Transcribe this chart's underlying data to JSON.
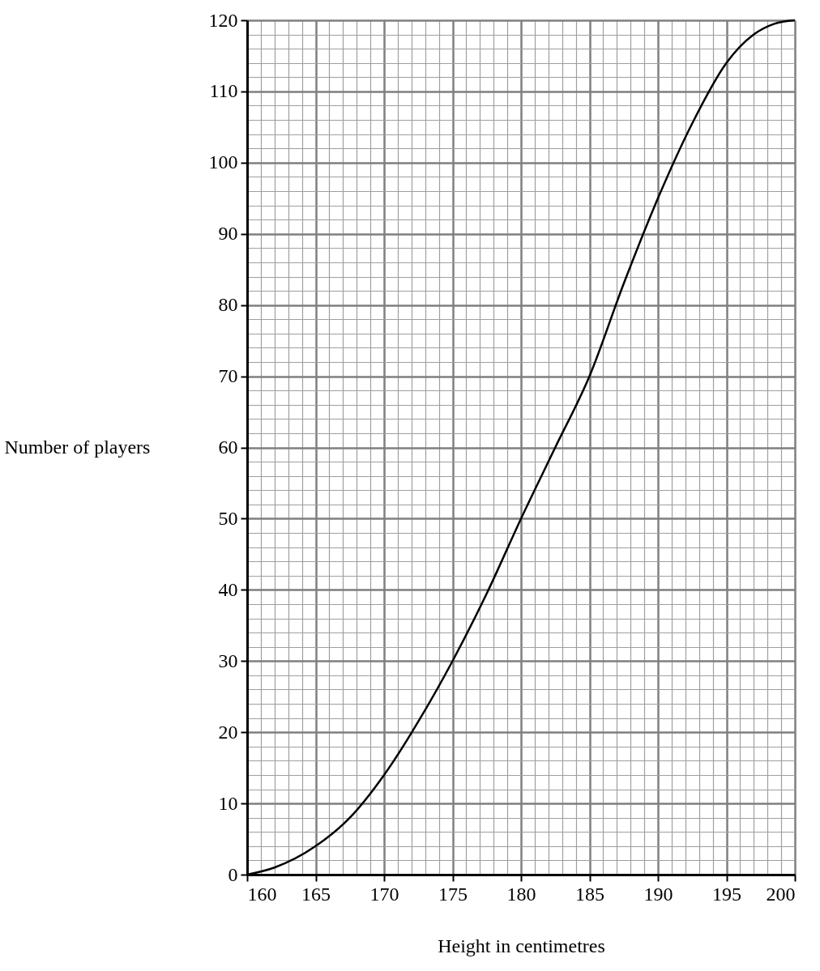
{
  "chart_data": {
    "type": "line",
    "xlabel": "Height in centimetres",
    "ylabel": "Number of players",
    "series": [
      {
        "color": "#000000",
        "x": [
          160,
          162,
          165,
          167.5,
          170,
          172.5,
          175,
          177.5,
          180,
          182.5,
          185,
          187.5,
          190,
          192.5,
          195,
          197,
          198.5,
          200
        ],
        "values": [
          0,
          1,
          4,
          8,
          14,
          21.5,
          30,
          39.5,
          50,
          60,
          70,
          83,
          95,
          105.5,
          114,
          118,
          119.5,
          120
        ]
      }
    ],
    "xlim": [
      160,
      200
    ],
    "ylim": [
      0,
      120
    ],
    "xticks": [
      160,
      {
        "value": 161,
        "label": null
      },
      {
        "value": 162,
        "label": null
      },
      {
        "value": 163,
        "label": null
      },
      {
        "value": 164,
        "label": null
      },
      165,
      {
        "value": 166,
        "label": null
      },
      {
        "value": 167,
        "label": null
      },
      {
        "value": 168,
        "label": null
      },
      {
        "value": 169,
        "label": null
      },
      170,
      {
        "value": 171,
        "label": null
      },
      {
        "value": 172,
        "label": null
      },
      {
        "value": 173,
        "label": null
      },
      {
        "value": 174,
        "label": null
      },
      175,
      {
        "value": 176,
        "label": null
      },
      {
        "value": 177,
        "label": null
      },
      {
        "value": 178,
        "label": null
      },
      {
        "value": 179,
        "label": null
      },
      180,
      {
        "value": 181,
        "label": null
      },
      {
        "value": 182,
        "label": null
      },
      {
        "value": 183,
        "label": null
      },
      {
        "value": 184,
        "label": null
      },
      185,
      {
        "value": 186,
        "label": null
      },
      {
        "value": 187,
        "label": null
      },
      {
        "value": 188,
        "label": null
      },
      {
        "value": 189,
        "label": null
      },
      190,
      {
        "value": 191,
        "label": null
      },
      {
        "value": 192,
        "label": null
      },
      {
        "value": 193,
        "label": null
      },
      {
        "value": 194,
        "label": null
      },
      195,
      {
        "value": 196,
        "label": null
      },
      {
        "value": 197,
        "label": null
      },
      {
        "value": 198,
        "label": null
      },
      {
        "value": 199,
        "label": null
      },
      200
    ],
    "yticks": [
      0,
      {
        "value": 2,
        "label": null
      },
      {
        "value": 4,
        "label": null
      },
      {
        "value": 6,
        "label": null
      },
      {
        "value": 8,
        "label": null
      },
      10,
      {
        "value": 12,
        "label": null
      },
      {
        "value": 14,
        "label": null
      },
      {
        "value": 16,
        "label": null
      },
      {
        "value": 18,
        "label": null
      },
      20,
      {
        "value": 22,
        "label": null
      },
      {
        "value": 24,
        "label": null
      },
      {
        "value": 26,
        "label": null
      },
      {
        "value": 28,
        "label": null
      },
      30,
      {
        "value": 32,
        "label": null
      },
      {
        "value": 34,
        "label": null
      },
      {
        "value": 36,
        "label": null
      },
      {
        "value": 38,
        "label": null
      },
      40,
      {
        "value": 42,
        "label": null
      },
      {
        "value": 44,
        "label": null
      },
      {
        "value": 46,
        "label": null
      },
      {
        "value": 48,
        "label": null
      },
      50,
      {
        "value": 52,
        "label": null
      },
      {
        "value": 54,
        "label": null
      },
      {
        "value": 56,
        "label": null
      },
      {
        "value": 58,
        "label": null
      },
      60,
      {
        "value": 62,
        "label": null
      },
      {
        "value": 64,
        "label": null
      },
      {
        "value": 66,
        "label": null
      },
      {
        "value": 68,
        "label": null
      },
      70,
      {
        "value": 72,
        "label": null
      },
      {
        "value": 74,
        "label": null
      },
      {
        "value": 76,
        "label": null
      },
      {
        "value": 78,
        "label": null
      },
      80,
      {
        "value": 82,
        "label": null
      },
      {
        "value": 84,
        "label": null
      },
      {
        "value": 86,
        "label": null
      },
      {
        "value": 88,
        "label": null
      },
      90,
      {
        "value": 92,
        "label": null
      },
      {
        "value": 94,
        "label": null
      },
      {
        "value": 96,
        "label": null
      },
      {
        "value": 98,
        "label": null
      },
      100,
      {
        "value": 102,
        "label": null
      },
      {
        "value": 104,
        "label": null
      },
      {
        "value": 106,
        "label": null
      },
      {
        "value": 108,
        "label": null
      },
      110,
      {
        "value": 112,
        "label": null
      },
      {
        "value": 114,
        "label": null
      },
      {
        "value": 116,
        "label": null
      },
      {
        "value": 118,
        "label": null
      },
      120
    ],
    "grid": true,
    "marker": "none",
    "line_style": "solid"
  }
}
